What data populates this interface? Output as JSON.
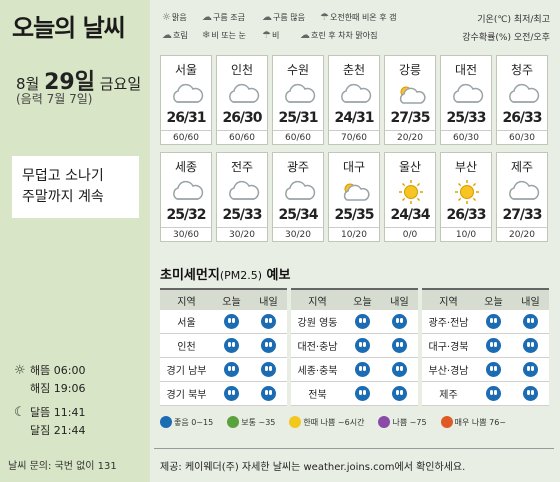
{
  "header": {
    "title": "오늘의 날씨"
  },
  "date": {
    "month_day_prefix": "8월 ",
    "day": "29일",
    "weekday": " 금요일",
    "lunar": "(음력 7월 7일)"
  },
  "memo": {
    "line1": "무덥고 소나기",
    "line2": "주말까지 계속"
  },
  "astro": {
    "sunrise": "해뜸 06:00",
    "sunset": "해짐 19:06",
    "moonrise": "달뜸 11:41",
    "moonset": "달짐 21:44"
  },
  "inquiry": "날씨 문의: 국번 없이 131",
  "legend": [
    {
      "icon": "sun-icon",
      "label": "맑음"
    },
    {
      "icon": "cloud-little-icon",
      "label": "구름 조금"
    },
    {
      "icon": "cloud-much-icon",
      "label": "구름 많음"
    },
    {
      "icon": "am-rain-icon",
      "label": "오전한때 비온 후 갬"
    },
    {
      "icon": "cloudy-icon",
      "label": "흐림"
    },
    {
      "icon": "rain-snow-icon",
      "label": "비 또는 눈"
    },
    {
      "icon": "rain-icon",
      "label": "비"
    },
    {
      "icon": "cloudy-clearing-icon",
      "label": "흐린 후 차차 맑아짐"
    }
  ],
  "units": {
    "temp": "기온(℃) 최저/최고",
    "rain": "강수확률(%) 오전/오후"
  },
  "cities": [
    {
      "name": "서울",
      "weather": "cloudy",
      "temp": "26/31",
      "rain": "60/60"
    },
    {
      "name": "인천",
      "weather": "cloudy",
      "temp": "26/30",
      "rain": "60/60"
    },
    {
      "name": "수원",
      "weather": "cloudy",
      "temp": "25/31",
      "rain": "60/60"
    },
    {
      "name": "춘천",
      "weather": "cloudy",
      "temp": "24/31",
      "rain": "70/60"
    },
    {
      "name": "강릉",
      "weather": "cloud-much",
      "temp": "27/35",
      "rain": "20/20"
    },
    {
      "name": "대전",
      "weather": "cloudy",
      "temp": "25/33",
      "rain": "60/30"
    },
    {
      "name": "청주",
      "weather": "cloudy",
      "temp": "26/33",
      "rain": "60/30"
    },
    {
      "name": "세종",
      "weather": "cloudy",
      "temp": "25/32",
      "rain": "30/60"
    },
    {
      "name": "전주",
      "weather": "cloudy",
      "temp": "25/33",
      "rain": "30/20"
    },
    {
      "name": "광주",
      "weather": "cloudy",
      "temp": "25/34",
      "rain": "30/20"
    },
    {
      "name": "대구",
      "weather": "cloud-much",
      "temp": "25/35",
      "rain": "10/20"
    },
    {
      "name": "울산",
      "weather": "sun",
      "temp": "24/34",
      "rain": "0/0"
    },
    {
      "name": "부산",
      "weather": "sun",
      "temp": "26/33",
      "rain": "10/0"
    },
    {
      "name": "제주",
      "weather": "cloudy",
      "temp": "27/33",
      "rain": "20/20"
    }
  ],
  "pm": {
    "title": "초미세먼지",
    "title_unit": "(PM2.5)",
    "title_suffix": " 예보",
    "head": {
      "region": "지역",
      "today": "오늘",
      "tomorrow": "내일"
    },
    "tables": [
      {
        "rows": [
          {
            "region": "서울",
            "today": "good",
            "tomorrow": "good"
          },
          {
            "region": "인천",
            "today": "good",
            "tomorrow": "good"
          },
          {
            "region": "경기 남부",
            "today": "good",
            "tomorrow": "good"
          },
          {
            "region": "경기 북부",
            "today": "good",
            "tomorrow": "good"
          }
        ]
      },
      {
        "rows": [
          {
            "region": "강원 영동",
            "today": "good",
            "tomorrow": "good"
          },
          {
            "region": "대전·충남",
            "today": "good",
            "tomorrow": "good"
          },
          {
            "region": "세종·충북",
            "today": "good",
            "tomorrow": "good"
          },
          {
            "region": "전북",
            "today": "good",
            "tomorrow": "good"
          }
        ]
      },
      {
        "rows": [
          {
            "region": "광주·전남",
            "today": "good",
            "tomorrow": "good"
          },
          {
            "region": "대구·경북",
            "today": "good",
            "tomorrow": "good"
          },
          {
            "region": "부산·경남",
            "today": "good",
            "tomorrow": "good"
          },
          {
            "region": "제주",
            "today": "good",
            "tomorrow": "good"
          }
        ]
      }
    ],
    "legend": [
      {
        "label": "좋음 0~15",
        "color": "#1c6cb4"
      },
      {
        "label": "보통 ~35",
        "color": "#5aa23c"
      },
      {
        "label": "한때 나쁨 ~6시간",
        "color": "#f2c81c"
      },
      {
        "label": "나쁨 ~75",
        "color": "#8b4aa8"
      },
      {
        "label": "매우 나쁨 76~",
        "color": "#e05a26"
      }
    ]
  },
  "source": "제공: 케이웨더(주) 자세한 날씨는 weather.joins.com에서 확인하세요."
}
